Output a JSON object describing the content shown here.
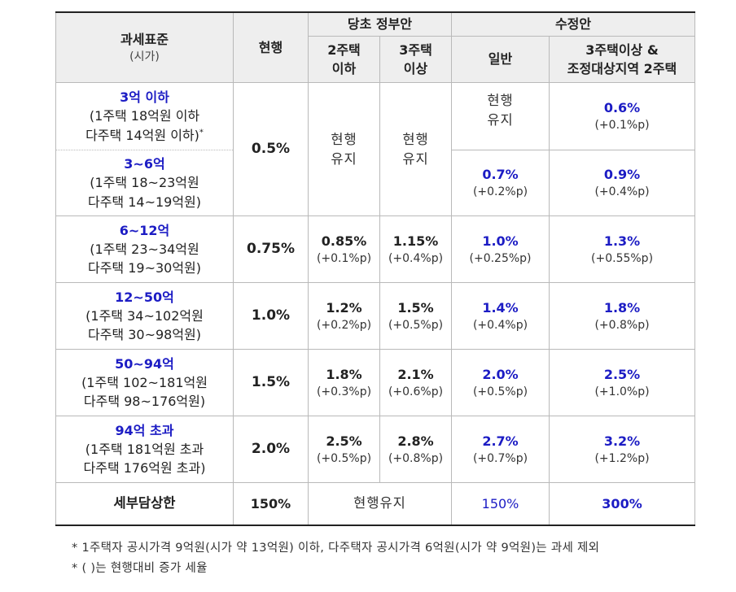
{
  "header": {
    "standard_label": "과세표준",
    "standard_sub": "(시가)",
    "current_label": "현행",
    "original_label": "당초 정부안",
    "orig_col1": "2주택 이하",
    "orig_col1_a": "2주택",
    "orig_col1_b": "이하",
    "orig_col2_a": "3주택",
    "orig_col2_b": "이상",
    "revised_label": "수정안",
    "rev_col1": "일반",
    "rev_col2_a": "3주택이상 &",
    "rev_col2_b": "조정대상지역 2주택"
  },
  "rows": [
    {
      "bracket": "3억 이하",
      "line1": "(1주택 18억원 이하",
      "line2": "다주택 14억원 이하)",
      "footmark": "*",
      "rev_general_a": "현행",
      "rev_general_b": "유지",
      "rev_multi": "0.6%",
      "rev_multi_inc": "(+0.1%p)"
    },
    {
      "bracket": "3~6억",
      "line1": "(1주택 18~23억원",
      "line2": "다주택 14~19억원)",
      "rev_general": "0.7%",
      "rev_general_inc": "(+0.2%p)",
      "rev_multi": "0.9%",
      "rev_multi_inc": "(+0.4%p)"
    },
    {
      "bracket": "6~12억",
      "line1": "(1주택 23~34억원",
      "line2": "다주택 19~30억원)",
      "current": "0.75%",
      "orig_two": "0.85%",
      "orig_two_inc": "(+0.1%p)",
      "orig_three": "1.15%",
      "orig_three_inc": "(+0.4%p)",
      "rev_general": "1.0%",
      "rev_general_inc": "(+0.25%p)",
      "rev_multi": "1.3%",
      "rev_multi_inc": "(+0.55%p)"
    },
    {
      "bracket": "12~50억",
      "line1": "(1주택 34~102억원",
      "line2": "다주택 30~98억원)",
      "current": "1.0%",
      "orig_two": "1.2%",
      "orig_two_inc": "(+0.2%p)",
      "orig_three": "1.5%",
      "orig_three_inc": "(+0.5%p)",
      "rev_general": "1.4%",
      "rev_general_inc": "(+0.4%p)",
      "rev_multi": "1.8%",
      "rev_multi_inc": "(+0.8%p)"
    },
    {
      "bracket": "50~94억",
      "line1": "(1주택 102~181억원",
      "line2": "다주택 98~176억원)",
      "current": "1.5%",
      "orig_two": "1.8%",
      "orig_two_inc": "(+0.3%p)",
      "orig_three": "2.1%",
      "orig_three_inc": "(+0.6%p)",
      "rev_general": "2.0%",
      "rev_general_inc": "(+0.5%p)",
      "rev_multi": "2.5%",
      "rev_multi_inc": "(+1.0%p)"
    },
    {
      "bracket": "94억 초과",
      "line1": "(1주택 181억원 초과",
      "line2": "다주택 176억원 초과)",
      "current": "2.0%",
      "orig_two": "2.5%",
      "orig_two_inc": "(+0.5%p)",
      "orig_three": "2.8%",
      "orig_three_inc": "(+0.8%p)",
      "rev_general": "2.7%",
      "rev_general_inc": "(+0.7%p)",
      "rev_multi": "3.2%",
      "rev_multi_inc": "(+1.2%p)"
    }
  ],
  "merged_first": {
    "current": "0.5%",
    "orig_keep_a": "현행",
    "orig_keep_b": "유지"
  },
  "cap_row": {
    "label": "세부담상한",
    "current": "150%",
    "orig": "현행유지",
    "rev_general": "150%",
    "rev_multi": "300%"
  },
  "notes": [
    "* 1주택자 공시가격 9억원(시가 약 13억원) 이하, 다주택자 공시가격 6억원(시가 약 9억원)는 과세 제외",
    "* ( )는 현행대비 증가 세율"
  ]
}
